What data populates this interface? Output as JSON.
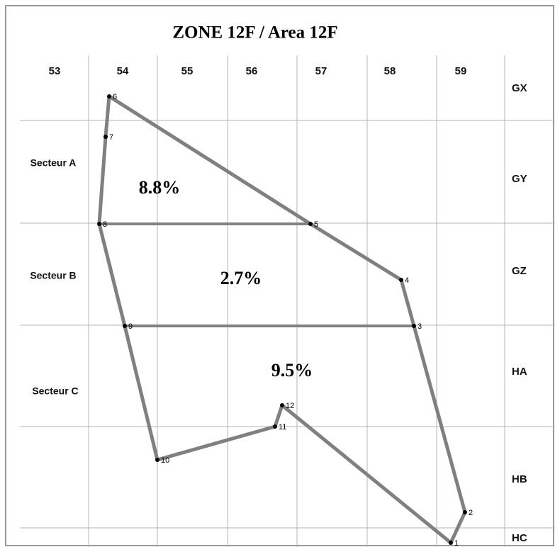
{
  "title": "ZONE 12F / Area 12F",
  "columns": [
    "53",
    "54",
    "55",
    "56",
    "57",
    "58",
    "59"
  ],
  "rows": [
    "GX",
    "GY",
    "GZ",
    "HA",
    "HB",
    "HC"
  ],
  "sectors": [
    "Secteur A",
    "Secteur B",
    "Secteur C"
  ],
  "shares": [
    "8.8%",
    "2.7%",
    "9.5%"
  ],
  "points": [
    "1",
    "2",
    "3",
    "4",
    "5",
    "6",
    "7",
    "8",
    "9",
    "10",
    "11",
    "12"
  ]
}
